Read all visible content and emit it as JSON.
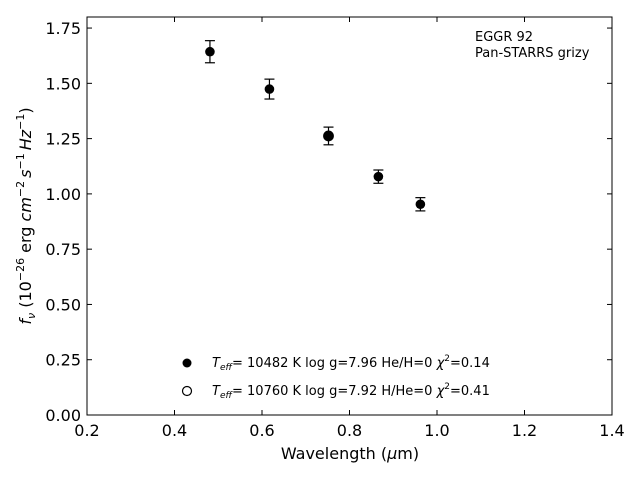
{
  "chart_data": {
    "type": "scatter",
    "annotation_lines": [
      "EGGR 92",
      "Pan-STARRS grizy"
    ],
    "xlim": [
      0.2,
      1.4
    ],
    "ylim": [
      0.0,
      1.8
    ],
    "x_ticks": [
      0.2,
      0.4,
      0.6,
      0.8,
      1.0,
      1.2,
      1.4
    ],
    "x_tick_labels": [
      "0.2",
      "0.4",
      "0.6",
      "0.8",
      "1.0",
      "1.2",
      "1.4"
    ],
    "y_ticks": [
      0.0,
      0.25,
      0.5,
      0.75,
      1.0,
      1.25,
      1.5,
      1.75
    ],
    "y_tick_labels": [
      "0.00",
      "0.25",
      "0.50",
      "0.75",
      "1.00",
      "1.25",
      "1.50",
      "1.75"
    ],
    "xlabel": {
      "pre": "Wavelength (",
      "greek": "μ",
      "post": "m)"
    },
    "ylabel": {
      "f": "f",
      "nu": "ν",
      "t1": " (10",
      "e26": "−26",
      "t2": " erg ",
      "cm": "cm",
      "e2": "−2",
      "s": "s",
      "e1": "−1",
      "hz": "Hz",
      "e1b": "−1",
      "close": ")"
    },
    "series": [
      {
        "marker": "filled-circle",
        "color": "#000000",
        "points": [
          {
            "x": 0.481,
            "y": 1.643,
            "yerr": 0.05
          },
          {
            "x": 0.617,
            "y": 1.474,
            "yerr": 0.045
          },
          {
            "x": 0.752,
            "y": 1.262,
            "yerr": 0.04
          },
          {
            "x": 0.866,
            "y": 1.078,
            "yerr": 0.03
          },
          {
            "x": 0.962,
            "y": 0.953,
            "yerr": 0.03
          }
        ]
      },
      {
        "marker": "open-circle",
        "color": "#000000",
        "points": [
          {
            "x": 0.752,
            "y": 1.262
          }
        ]
      }
    ],
    "legend": [
      {
        "marker": "filled-circle",
        "teff": "T",
        "teff_sub": "eff",
        "text1": "= 10482 K  log g=7.96  He/H=0  ",
        "chi": "χ",
        "chi_sup": "2",
        "text2": "=0.14"
      },
      {
        "marker": "open-circle",
        "teff": "T",
        "teff_sub": "eff",
        "text1": "= 10760 K  log g=7.92  H/He=0  ",
        "chi": "χ",
        "chi_sup": "2",
        "text2": "=0.41"
      }
    ],
    "legend_placement": "lower-center",
    "grid": false
  }
}
